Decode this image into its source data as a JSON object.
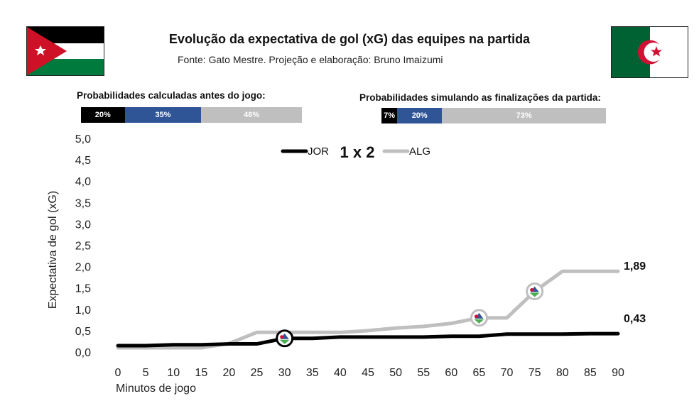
{
  "header": {
    "title": "Evolução da expectativa de gol (xG) das equipes na partida",
    "subtitle": "Fonte: Gato Mestre. Projeção e elaboração: Bruno Imaizumi"
  },
  "flags": {
    "left": {
      "icon": "jordan-flag-icon",
      "colors": {
        "black": "#000000",
        "white": "#ffffff",
        "green": "#007a3d",
        "red": "#ce1126"
      }
    },
    "right": {
      "icon": "algeria-flag-icon",
      "colors": {
        "green": "#006233",
        "white": "#ffffff",
        "red": "#d21034"
      }
    }
  },
  "pre_match": {
    "label": "Probabilidades calculadas antes do jogo:",
    "segments": [
      {
        "value": 20,
        "label": "20%",
        "color": "#000000"
      },
      {
        "value": 35,
        "label": "35%",
        "color": "#2f5597"
      },
      {
        "value": 46,
        "label": "46%",
        "color": "#bfbfbf"
      }
    ]
  },
  "in_match": {
    "label": "Probabilidades simulando as finalizações da partida:",
    "segments": [
      {
        "value": 7,
        "label": "7%",
        "color": "#000000"
      },
      {
        "value": 20,
        "label": "20%",
        "color": "#2f5597"
      },
      {
        "value": 73,
        "label": "73%",
        "color": "#bfbfbf"
      }
    ]
  },
  "chart_data": {
    "type": "line",
    "ylabel": "Expectativa de gol (xG)",
    "xlabel": "Minutos de jogo",
    "xlim": [
      0,
      90
    ],
    "ylim": [
      0,
      5
    ],
    "x_ticks": [
      "0",
      "5",
      "10",
      "15",
      "20",
      "25",
      "30",
      "35",
      "40",
      "45",
      "50",
      "55",
      "60",
      "65",
      "70",
      "75",
      "80",
      "85",
      "90"
    ],
    "y_ticks": [
      {
        "value": 0,
        "label": "0,0"
      },
      {
        "value": 0.5,
        "label": "0,5"
      },
      {
        "value": 1.0,
        "label": "1,0"
      },
      {
        "value": 1.5,
        "label": "1,5"
      },
      {
        "value": 2.0,
        "label": "2,0"
      },
      {
        "value": 2.5,
        "label": "2,5"
      },
      {
        "value": 3.0,
        "label": "3,0"
      },
      {
        "value": 3.5,
        "label": "3,5"
      },
      {
        "value": 4.0,
        "label": "4,0"
      },
      {
        "value": 4.5,
        "label": "4,5"
      },
      {
        "value": 5.0,
        "label": "5,0"
      }
    ],
    "grid": false,
    "legend": {
      "left": "JOR",
      "score": "1 x 2",
      "right": "ALG"
    },
    "series": [
      {
        "name": "JOR",
        "color": "#000000",
        "x": [
          0,
          5,
          10,
          15,
          20,
          25,
          30,
          35,
          40,
          45,
          50,
          55,
          60,
          65,
          70,
          75,
          80,
          85,
          90
        ],
        "y": [
          0.15,
          0.15,
          0.17,
          0.17,
          0.19,
          0.19,
          0.32,
          0.32,
          0.35,
          0.35,
          0.35,
          0.35,
          0.37,
          0.37,
          0.42,
          0.42,
          0.42,
          0.43,
          0.43
        ],
        "end_label": "0,43",
        "goals": [
          {
            "x": 30,
            "y": 0.32
          }
        ]
      },
      {
        "name": "ALG",
        "color": "#bfbfbf",
        "x": [
          0,
          5,
          10,
          15,
          20,
          25,
          30,
          35,
          40,
          45,
          50,
          55,
          60,
          65,
          70,
          75,
          80,
          85,
          90
        ],
        "y": [
          0.1,
          0.1,
          0.1,
          0.1,
          0.2,
          0.46,
          0.46,
          0.46,
          0.46,
          0.5,
          0.56,
          0.6,
          0.67,
          0.8,
          0.8,
          1.42,
          1.89,
          1.89,
          1.89
        ],
        "end_label": "1,89",
        "goals": [
          {
            "x": 65,
            "y": 0.8
          },
          {
            "x": 75,
            "y": 1.42
          }
        ]
      }
    ]
  }
}
